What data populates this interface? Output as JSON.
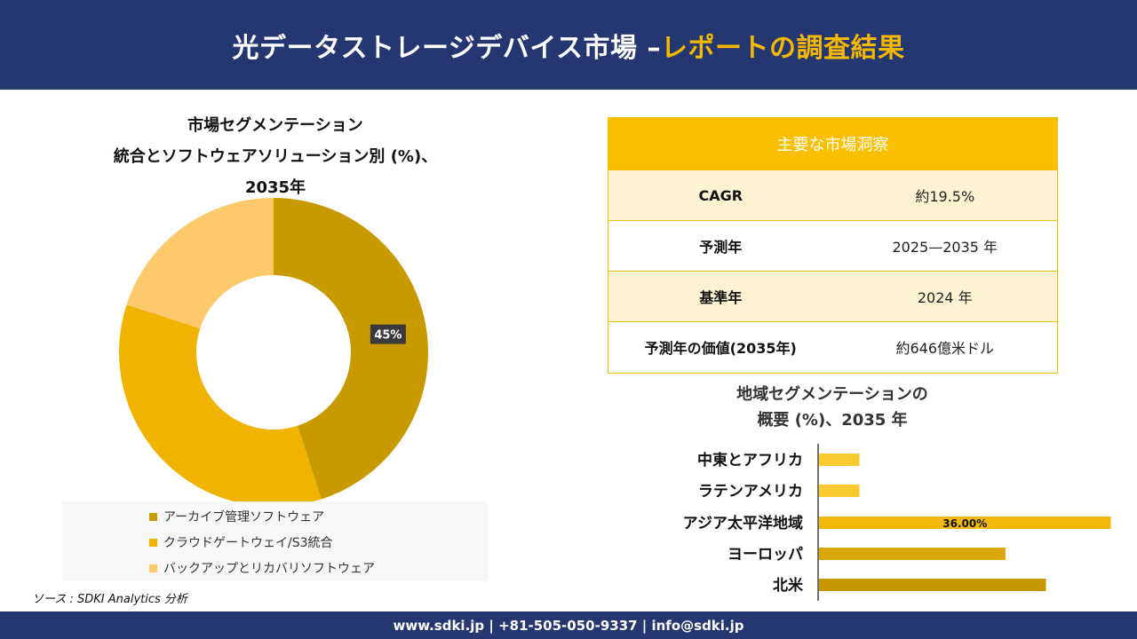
{
  "header": {
    "title_main": "光データストレージデバイス市場 –",
    "title_accent": "レポートの調査結果"
  },
  "colors": {
    "navy": "#243770",
    "accent_yellow": "#f5b800",
    "dark_gold": "#c99a00",
    "gold": "#f0b400",
    "light_gold": "#fdc96a"
  },
  "chart_data": [
    {
      "type": "pie",
      "variant": "donut",
      "title_lines": [
        "市場セグメンテーション",
        "統合とソフトウェアソリューション別 (%)、",
        "2035年"
      ],
      "series": [
        {
          "name": "アーカイブ管理ソフトウェア",
          "value": 45,
          "color": "#c99a00"
        },
        {
          "name": "クラウドゲートウェイ/S3統合",
          "value": 35,
          "color": "#f0b400"
        },
        {
          "name": "バックアップとリカバリソフトウェア",
          "value": 20,
          "color": "#fdc96a"
        }
      ],
      "data_labels": [
        "45%"
      ],
      "legend_position": "bottom"
    },
    {
      "type": "bar",
      "orientation": "horizontal",
      "title_lines": [
        "地域セグメンテーションの",
        "概要 (%)、2035 年"
      ],
      "categories": [
        "中東とアフリカ",
        "ラテンアメリカ",
        "アジア太平洋地域",
        "ヨーロッパ",
        "北米"
      ],
      "values": [
        5,
        5,
        36,
        23,
        28
      ],
      "colors": [
        "#fac830",
        "#fac830",
        "#f3b90a",
        "#dca700",
        "#c89600"
      ],
      "data_labels": [
        "",
        "",
        "36.00%",
        "",
        ""
      ],
      "xlim": [
        0,
        40
      ]
    }
  ],
  "insights": {
    "heading": "主要な市場洞察",
    "rows": [
      {
        "key": "CAGR",
        "value": "約19.5%"
      },
      {
        "key": "予測年",
        "value": "2025—2035 年"
      },
      {
        "key": "基準年",
        "value": "2024 年"
      },
      {
        "key": "予測年の価値(2035年)",
        "value": "約646億米ドル"
      }
    ]
  },
  "source": "ソース : SDKI Analytics 分析",
  "footer": "www.sdki.jp | +81-505-050-9337 | info@sdki.jp"
}
